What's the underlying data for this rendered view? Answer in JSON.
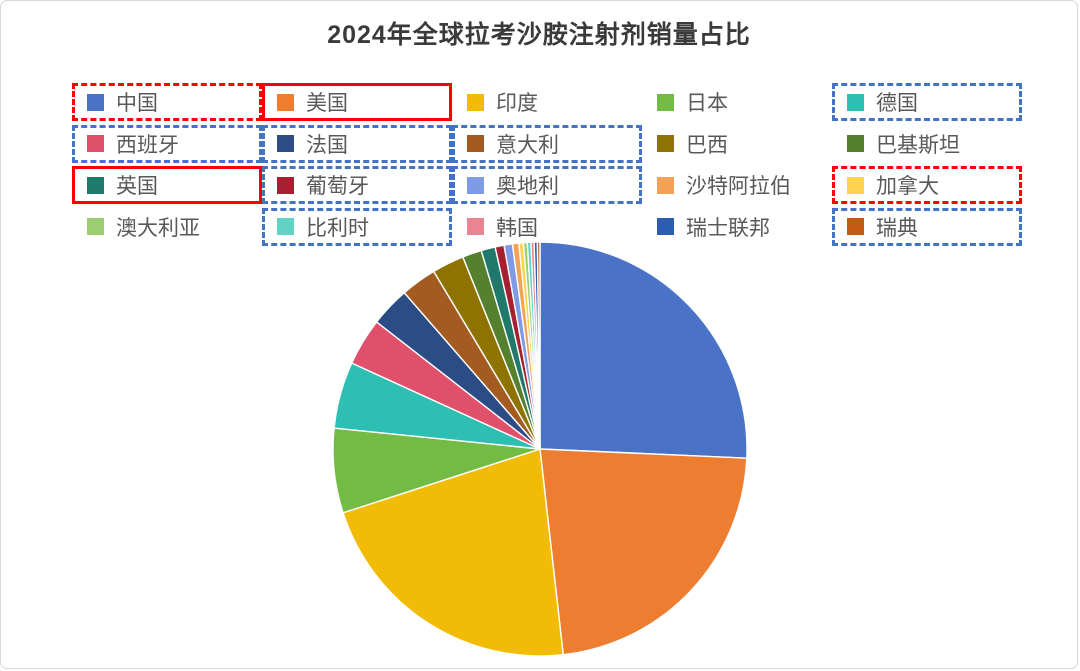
{
  "title": "2024年全球拉考沙胺注射剂销量占比",
  "colors": {
    "title_text": "#3a3a3a",
    "legend_text": "#595959",
    "box_red": "#ff0000",
    "box_blue": "#4472c4",
    "page_border": "#d8d8d8",
    "slice_separator": "#ffffff"
  },
  "chart_data": {
    "type": "pie",
    "title": "2024年全球拉考沙胺注射剂销量占比",
    "values_unit": "percent_share_estimated_from_pixels",
    "start_angle_deg": 0,
    "direction": "clockwise",
    "legend_position": "top",
    "legend_columns": 5,
    "series": [
      {
        "id": "china",
        "label": "中国",
        "value": 25.7,
        "color": "#4a73c8",
        "box": "red-dashed"
      },
      {
        "id": "usa",
        "label": "美国",
        "value": 22.5,
        "color": "#ed7d31",
        "box": "red-solid"
      },
      {
        "id": "india",
        "label": "印度",
        "value": 21.8,
        "color": "#f2bc06",
        "box": "none"
      },
      {
        "id": "japan",
        "label": "日本",
        "value": 6.6,
        "color": "#72bb44",
        "box": "none"
      },
      {
        "id": "germany",
        "label": "德国",
        "value": 5.2,
        "color": "#2ebfb3",
        "box": "blue-dashed"
      },
      {
        "id": "spain",
        "label": "西班牙",
        "value": 3.7,
        "color": "#e0506a",
        "box": "blue-dashed"
      },
      {
        "id": "france",
        "label": "法国",
        "value": 3.1,
        "color": "#2b4c85",
        "box": "blue-dashed"
      },
      {
        "id": "italy",
        "label": "意大利",
        "value": 2.8,
        "color": "#a35b21",
        "box": "blue-dashed"
      },
      {
        "id": "brazil",
        "label": "巴西",
        "value": 2.5,
        "color": "#8f7300",
        "box": "none"
      },
      {
        "id": "pakistan",
        "label": "巴基斯坦",
        "value": 1.5,
        "color": "#55812f",
        "box": "none"
      },
      {
        "id": "uk",
        "label": "英国",
        "value": 1.1,
        "color": "#1f7a6c",
        "box": "red-solid"
      },
      {
        "id": "portugal",
        "label": "葡萄牙",
        "value": 0.7,
        "color": "#a72031",
        "box": "blue-dashed"
      },
      {
        "id": "austria",
        "label": "奥地利",
        "value": 0.65,
        "color": "#7e9be5",
        "box": "blue-dashed"
      },
      {
        "id": "saudi-arabia",
        "label": "沙特阿拉伯",
        "value": 0.5,
        "color": "#f2a159",
        "box": "none"
      },
      {
        "id": "canada",
        "label": "加拿大",
        "value": 0.35,
        "color": "#ffd34d",
        "box": "red-dashed"
      },
      {
        "id": "australia",
        "label": "澳大利亚",
        "value": 0.3,
        "color": "#9cce71",
        "box": "none"
      },
      {
        "id": "belgium",
        "label": "比利时",
        "value": 0.28,
        "color": "#62d2c5",
        "box": "blue-dashed"
      },
      {
        "id": "south-korea",
        "label": "韩国",
        "value": 0.25,
        "color": "#ea8392",
        "box": "none"
      },
      {
        "id": "switzerland",
        "label": "瑞士联邦",
        "value": 0.25,
        "color": "#2d5cb3",
        "box": "none"
      },
      {
        "id": "sweden",
        "label": "瑞典",
        "value": 0.2,
        "color": "#c55a11",
        "box": "blue-dashed"
      }
    ],
    "pie_geometry": {
      "center_x": 539,
      "center_y": 448,
      "radius": 207
    }
  }
}
